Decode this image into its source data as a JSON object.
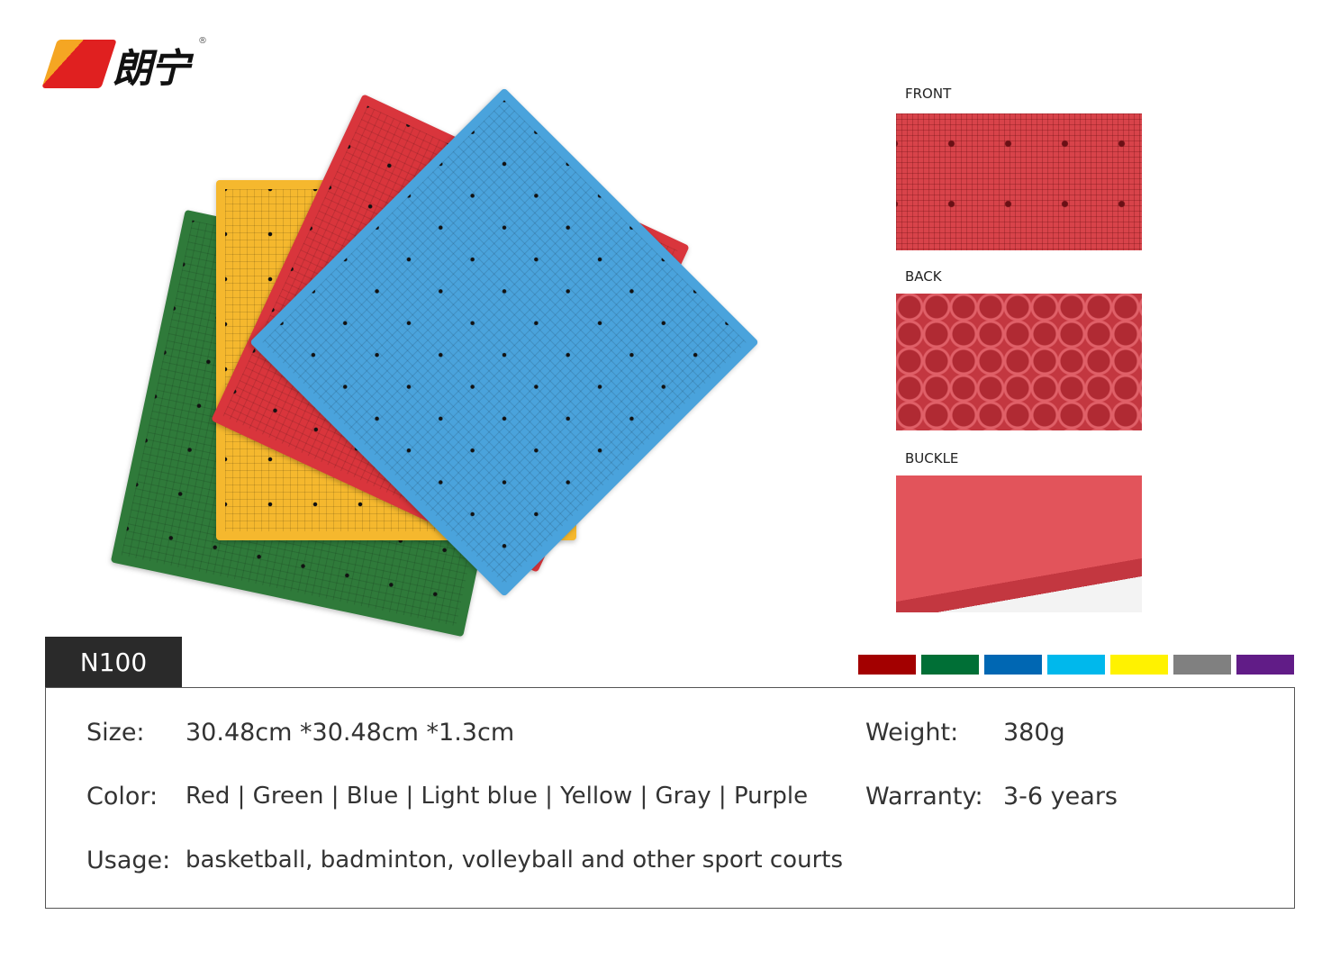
{
  "brand": {
    "name": "朗宁",
    "registered": "®"
  },
  "views": [
    {
      "label": "FRONT"
    },
    {
      "label": "BACK"
    },
    {
      "label": "BUCKLE"
    }
  ],
  "model": "N100",
  "color_swatches": [
    "#a30000",
    "#006f36",
    "#0067b3",
    "#00b8ec",
    "#fff200",
    "#808080",
    "#611c87"
  ],
  "mat_colors": [
    "#2f7a3a",
    "#f5b82e",
    "#d9353c",
    "#4aa3dc"
  ],
  "specs": {
    "size": {
      "label": "Size:",
      "value": "30.48cm *30.48cm *1.3cm"
    },
    "color": {
      "label": "Color:",
      "value": "Red | Green | Blue | Light blue | Yellow | Gray | Purple"
    },
    "usage": {
      "label": "Usage:",
      "value": "basketball, badminton, volleyball and other sport courts"
    },
    "weight": {
      "label": "Weight:",
      "value": "380g"
    },
    "warranty": {
      "label": "Warranty:",
      "value": "3-6 years"
    }
  }
}
